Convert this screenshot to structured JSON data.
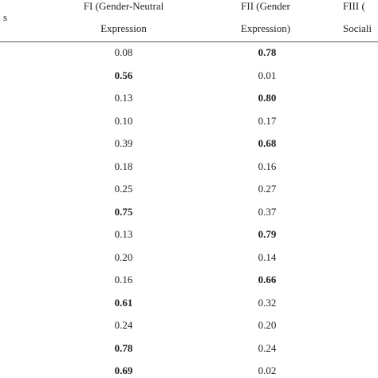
{
  "table": {
    "header": [
      {
        "lines": [
          "s"
        ]
      },
      {
        "lines": [
          "FI (Gender-Neutral",
          "Expression"
        ]
      },
      {
        "lines": [
          "FII (Gender",
          "Expression)"
        ]
      },
      {
        "lines": [
          "FIII (",
          "Sociali"
        ]
      }
    ],
    "rows": [
      [
        {
          "text": "0.08",
          "bold": false
        },
        {
          "text": "0.78",
          "bold": true
        }
      ],
      [
        {
          "text": "0.56",
          "bold": true
        },
        {
          "text": "0.01",
          "bold": false
        }
      ],
      [
        {
          "text": "0.13",
          "bold": false
        },
        {
          "text": "0.80",
          "bold": true
        }
      ],
      [
        {
          "text": "0.10",
          "bold": false
        },
        {
          "text": "0.17",
          "bold": false
        }
      ],
      [
        {
          "text": "0.39",
          "bold": false
        },
        {
          "text": "0.68",
          "bold": true
        }
      ],
      [
        {
          "text": "0.18",
          "bold": false
        },
        {
          "text": "0.16",
          "bold": false
        }
      ],
      [
        {
          "text": "0.25",
          "bold": false
        },
        {
          "text": "0.27",
          "bold": false
        }
      ],
      [
        {
          "text": "0.75",
          "bold": true
        },
        {
          "text": "0.37",
          "bold": false
        }
      ],
      [
        {
          "text": "0.13",
          "bold": false
        },
        {
          "text": "0.79",
          "bold": true
        }
      ],
      [
        {
          "text": "0.20",
          "bold": false
        },
        {
          "text": "0.14",
          "bold": false
        }
      ],
      [
        {
          "text": "0.16",
          "bold": false
        },
        {
          "text": "0.66",
          "bold": true
        }
      ],
      [
        {
          "text": "0.61",
          "bold": true
        },
        {
          "text": "0.32",
          "bold": false
        }
      ],
      [
        {
          "text": "0.24",
          "bold": false
        },
        {
          "text": "0.20",
          "bold": false
        }
      ],
      [
        {
          "text": "0.78",
          "bold": true
        },
        {
          "text": "0.24",
          "bold": false
        }
      ],
      [
        {
          "text": "0.69",
          "bold": true
        },
        {
          "text": "0.02",
          "bold": false
        }
      ]
    ]
  }
}
